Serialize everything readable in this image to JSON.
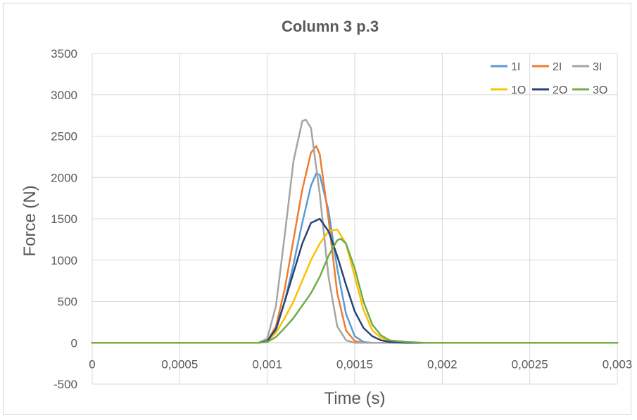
{
  "chart_data": {
    "type": "line",
    "title": "Column 3 p.3",
    "xlabel": "Time (s)",
    "ylabel": "Force (N)",
    "xlim": [
      0,
      0.003
    ],
    "ylim": [
      -500,
      3500
    ],
    "x_ticks": [
      0,
      0.0005,
      0.001,
      0.0015,
      0.002,
      0.0025,
      0.003
    ],
    "x_tick_labels": [
      "0",
      "0,0005",
      "0,001",
      "0,0015",
      "0,002",
      "0,0025",
      "0,003"
    ],
    "y_ticks": [
      -500,
      0,
      500,
      1000,
      1500,
      2000,
      2500,
      3000,
      3500
    ],
    "y_tick_labels": [
      "-500",
      "0",
      "500",
      "1000",
      "1500",
      "2000",
      "2500",
      "3000",
      "3500"
    ],
    "grid": true,
    "legend_position": "top-right",
    "series": [
      {
        "name": "1I",
        "color": "#5b9bd5",
        "x": [
          0,
          0.00095,
          0.001,
          0.00105,
          0.0011,
          0.00115,
          0.0012,
          0.00125,
          0.00128,
          0.0013,
          0.00135,
          0.0014,
          0.00145,
          0.0015,
          0.00155,
          0.0016,
          0.003
        ],
        "y": [
          0,
          0,
          20,
          150,
          500,
          950,
          1450,
          1900,
          2050,
          2030,
          1600,
          900,
          350,
          80,
          10,
          0,
          0
        ]
      },
      {
        "name": "2I",
        "color": "#ed7d31",
        "x": [
          0,
          0.00095,
          0.001,
          0.00105,
          0.0011,
          0.00115,
          0.0012,
          0.00125,
          0.00128,
          0.0013,
          0.00135,
          0.0014,
          0.00145,
          0.0015,
          0.00155,
          0.003
        ],
        "y": [
          0,
          0,
          20,
          200,
          650,
          1250,
          1850,
          2300,
          2380,
          2280,
          1500,
          600,
          150,
          20,
          0,
          0
        ]
      },
      {
        "name": "3I",
        "color": "#a5a5a5",
        "x": [
          0,
          0.00095,
          0.001,
          0.00105,
          0.0011,
          0.00115,
          0.0012,
          0.00122,
          0.00125,
          0.0013,
          0.00135,
          0.0014,
          0.00145,
          0.0015,
          0.003
        ],
        "y": [
          0,
          0,
          50,
          450,
          1300,
          2200,
          2680,
          2700,
          2600,
          1800,
          800,
          200,
          30,
          0,
          0
        ]
      },
      {
        "name": "1O",
        "color": "#ffc000",
        "x": [
          0,
          0.00095,
          0.001,
          0.00105,
          0.0011,
          0.00115,
          0.0012,
          0.00125,
          0.0013,
          0.00135,
          0.0014,
          0.00145,
          0.0015,
          0.00155,
          0.0016,
          0.00165,
          0.0017,
          0.0018,
          0.003
        ],
        "y": [
          0,
          0,
          20,
          120,
          300,
          500,
          750,
          1000,
          1200,
          1350,
          1370,
          1200,
          800,
          400,
          150,
          60,
          20,
          0,
          0
        ]
      },
      {
        "name": "2O",
        "color": "#264478",
        "x": [
          0,
          0.00095,
          0.001,
          0.00105,
          0.0011,
          0.00115,
          0.0012,
          0.00125,
          0.0013,
          0.00135,
          0.0014,
          0.00145,
          0.0015,
          0.00155,
          0.0016,
          0.00165,
          0.0017,
          0.0018,
          0.003
        ],
        "y": [
          0,
          0,
          20,
          170,
          500,
          850,
          1200,
          1450,
          1500,
          1350,
          1050,
          700,
          380,
          180,
          80,
          30,
          10,
          0,
          0
        ]
      },
      {
        "name": "3O",
        "color": "#70ad47",
        "x": [
          0,
          0.00095,
          0.001,
          0.00105,
          0.0011,
          0.00115,
          0.0012,
          0.00125,
          0.0013,
          0.00135,
          0.0014,
          0.00142,
          0.00145,
          0.0015,
          0.00155,
          0.0016,
          0.00165,
          0.0017,
          0.0018,
          0.0019,
          0.003
        ],
        "y": [
          0,
          0,
          10,
          70,
          180,
          300,
          450,
          600,
          800,
          1050,
          1240,
          1260,
          1200,
          900,
          500,
          220,
          90,
          30,
          10,
          0,
          0
        ]
      }
    ]
  }
}
